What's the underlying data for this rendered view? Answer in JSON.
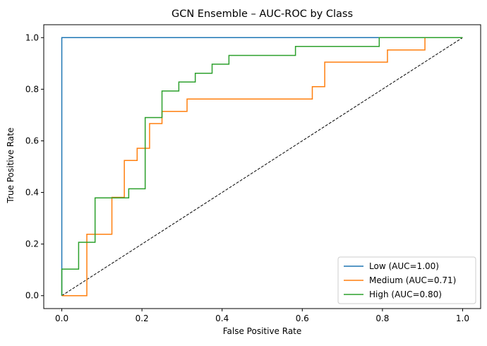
{
  "chart_data": {
    "type": "line",
    "title": "GCN Ensemble – AUC-ROC by Class",
    "xlabel": "False Positive Rate",
    "ylabel": "True Positive Rate",
    "xlim": [
      -0.045,
      1.045
    ],
    "ylim": [
      -0.05,
      1.05
    ],
    "xticks": [
      0.0,
      0.2,
      0.4,
      0.6,
      0.8,
      1.0
    ],
    "xtick_labels": [
      "0.0",
      "0.2",
      "0.4",
      "0.6",
      "0.8",
      "1.0"
    ],
    "yticks": [
      0.0,
      0.2,
      0.4,
      0.6,
      0.8,
      1.0
    ],
    "ytick_labels": [
      "0.0",
      "0.2",
      "0.4",
      "0.6",
      "0.8",
      "1.0"
    ],
    "grid": false,
    "legend_position": "lower right",
    "series": [
      {
        "name": "Low (AUC=1.00)",
        "color": "#1f77b4",
        "x": [
          0.0,
          0.0,
          0.0,
          1.0
        ],
        "y": [
          0.0,
          0.0,
          1.0,
          1.0
        ]
      },
      {
        "name": "Medium (AUC=0.71)",
        "color": "#ff7f0e",
        "x": [
          0.0,
          0.0625,
          0.0625,
          0.125,
          0.125,
          0.156,
          0.156,
          0.188,
          0.188,
          0.208,
          0.208,
          0.219,
          0.219,
          0.25,
          0.25,
          0.3125,
          0.3125,
          0.625,
          0.625,
          0.656,
          0.656,
          0.8125,
          0.8125,
          0.906,
          0.906,
          1.0
        ],
        "y": [
          0.0,
          0.0,
          0.238,
          0.238,
          0.381,
          0.381,
          0.524,
          0.524,
          0.571,
          0.571,
          0.571,
          0.571,
          0.667,
          0.667,
          0.714,
          0.714,
          0.762,
          0.762,
          0.81,
          0.81,
          0.905,
          0.905,
          0.952,
          0.952,
          1.0,
          1.0
        ]
      },
      {
        "name": "High (AUC=0.80)",
        "color": "#2ca02c",
        "x": [
          0.0,
          0.0,
          0.042,
          0.042,
          0.083,
          0.083,
          0.167,
          0.167,
          0.208,
          0.208,
          0.25,
          0.25,
          0.292,
          0.292,
          0.333,
          0.333,
          0.375,
          0.375,
          0.417,
          0.417,
          0.583,
          0.583,
          0.792,
          0.792,
          1.0
        ],
        "y": [
          0.0,
          0.103,
          0.103,
          0.207,
          0.207,
          0.379,
          0.379,
          0.414,
          0.414,
          0.69,
          0.69,
          0.793,
          0.793,
          0.828,
          0.828,
          0.862,
          0.862,
          0.897,
          0.897,
          0.931,
          0.931,
          0.966,
          0.966,
          1.0,
          1.0
        ]
      }
    ],
    "reference_line": {
      "style": "dashed",
      "color": "#000000",
      "x": [
        0.0,
        1.0
      ],
      "y": [
        0.0,
        1.0
      ]
    }
  }
}
